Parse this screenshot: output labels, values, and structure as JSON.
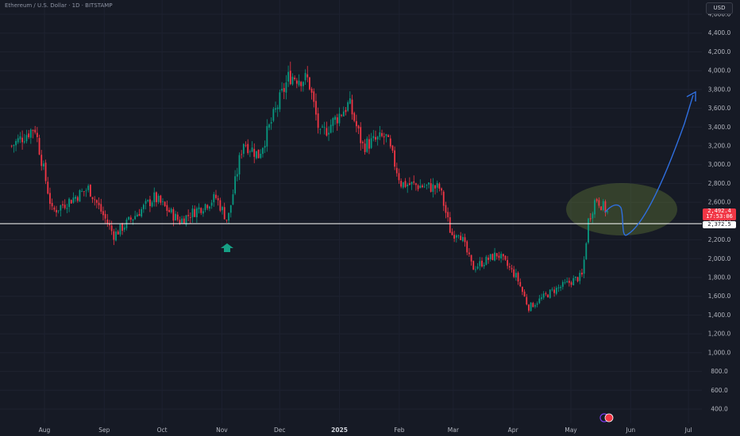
{
  "header": {
    "title": "Ethereum / U.S. Dollar · 1D · BITSTAMP",
    "currency_button": "USD"
  },
  "price_axis": {
    "ticks": [
      "400.0",
      "600.0",
      "800.0",
      "1,000.0",
      "1,200.0",
      "1,400.0",
      "1,600.0",
      "1,800.0",
      "2,000.0",
      "2,200.0",
      "2,400.0",
      "2,600.0",
      "2,800.0",
      "3,000.0",
      "3,200.0",
      "3,400.0",
      "3,600.0",
      "3,800.0",
      "4,000.0",
      "4,200.0",
      "4,400.0",
      "4,600.0"
    ]
  },
  "time_axis": {
    "labels": [
      "Aug",
      "Sep",
      "Oct",
      "Nov",
      "Dec",
      "2025",
      "Feb",
      "Mar",
      "Apr",
      "May",
      "Jun",
      "Jul"
    ]
  },
  "price_tags": {
    "last_price": "2,492.4",
    "countdown": "17:53:06",
    "level_price": "2,372.5"
  },
  "colors": {
    "background": "#161a25",
    "up_candle": "#089981",
    "down_candle": "#f23645",
    "level_line": "#ffffff",
    "projection": "#2f6fe0",
    "highlight": "#6e8a3a"
  },
  "chart_data": {
    "type": "candlestick",
    "symbol": "Ethereum / U.S. Dollar",
    "interval": "1D",
    "exchange": "BITSTAMP",
    "ylim": [
      400,
      4600
    ],
    "horizontal_level": 2372.5,
    "last_price": 2492.4,
    "swings": [
      {
        "date": "2024-07-15",
        "close": 3200
      },
      {
        "date": "2024-07-27",
        "close": 3400
      },
      {
        "date": "2024-08-05",
        "close": 2500
      },
      {
        "date": "2024-08-24",
        "close": 2750
      },
      {
        "date": "2024-09-06",
        "close": 2250
      },
      {
        "date": "2024-09-27",
        "close": 2650
      },
      {
        "date": "2024-10-10",
        "close": 2400
      },
      {
        "date": "2024-10-29",
        "close": 2650
      },
      {
        "date": "2024-11-04",
        "close": 2400
      },
      {
        "date": "2024-11-12",
        "close": 3250
      },
      {
        "date": "2024-11-20",
        "close": 3100
      },
      {
        "date": "2024-12-06",
        "close": 3950
      },
      {
        "date": "2024-12-16",
        "close": 3900
      },
      {
        "date": "2024-12-22",
        "close": 3300
      },
      {
        "date": "2025-01-06",
        "close": 3650
      },
      {
        "date": "2025-01-13",
        "close": 3200
      },
      {
        "date": "2025-01-25",
        "close": 3300
      },
      {
        "date": "2025-02-02",
        "close": 2800
      },
      {
        "date": "2025-02-22",
        "close": 2750
      },
      {
        "date": "2025-02-28",
        "close": 2250
      },
      {
        "date": "2025-03-04",
        "close": 2300
      },
      {
        "date": "2025-03-11",
        "close": 1900
      },
      {
        "date": "2025-03-24",
        "close": 2050
      },
      {
        "date": "2025-04-03",
        "close": 1800
      },
      {
        "date": "2025-04-09",
        "close": 1480
      },
      {
        "date": "2025-04-21",
        "close": 1650
      },
      {
        "date": "2025-05-07",
        "close": 1820
      },
      {
        "date": "2025-05-10",
        "close": 2400
      },
      {
        "date": "2025-05-14",
        "close": 2650
      },
      {
        "date": "2025-05-20",
        "close": 2492
      }
    ]
  }
}
